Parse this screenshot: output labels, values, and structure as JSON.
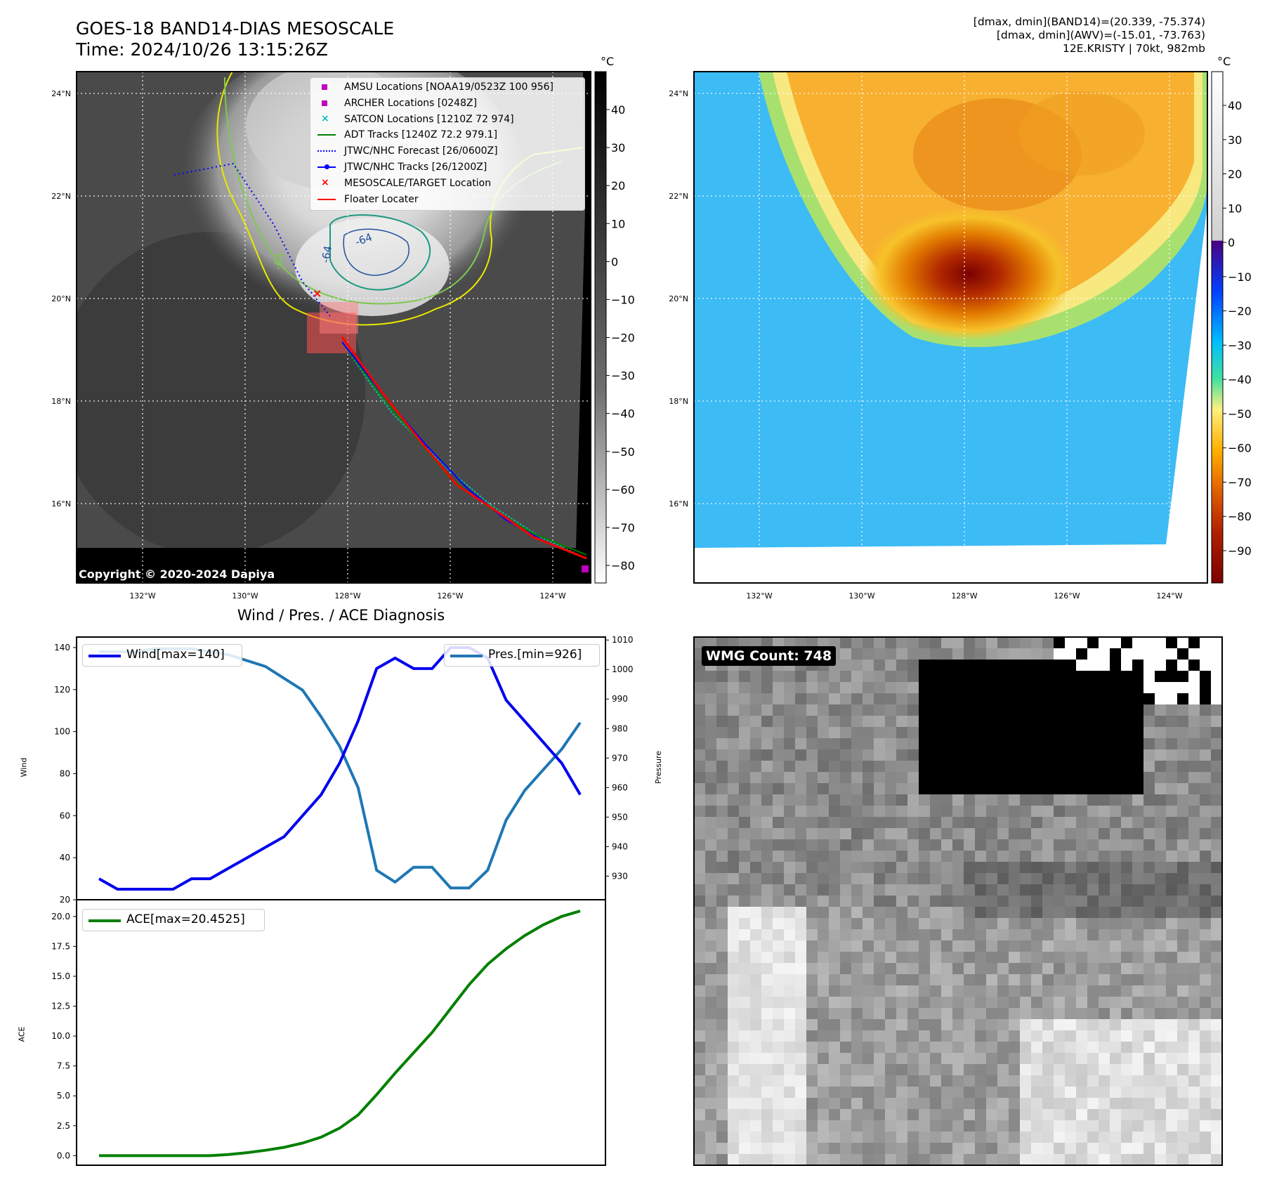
{
  "header": {
    "title_line1": "GOES-18 BAND14-DIAS MESOSCALE",
    "title_line2": "Time: 2024/10/26 13:15:26Z",
    "info_line1": "[dmax, dmin](BAND14)=(20.339, -75.374)",
    "info_line2": "[dmax, dmin](AWV)=(-15.01, -73.763)",
    "info_line3": "12E.KRISTY | 70kt, 982mb"
  },
  "map": {
    "lat_labels": [
      "24°N",
      "22°N",
      "20°N",
      "18°N",
      "16°N"
    ],
    "lon_labels": [
      "132°W",
      "130°W",
      "128°W",
      "126°W",
      "124°W"
    ],
    "contour_labels": [
      "-64",
      "-64",
      "-64"
    ],
    "copyright": "Copyright © 2020-2024 Dapiya",
    "legend": [
      {
        "label": "AMSU Locations [NOAA19/0523Z 100 956]",
        "marker": "square",
        "color": "#bf00bf"
      },
      {
        "label": "ARCHER Locations [0248Z]",
        "marker": "square",
        "color": "#bf00bf"
      },
      {
        "label": "SATCON Locations [1210Z 72 974]",
        "marker": "x",
        "color": "#00bfbf"
      },
      {
        "label": "ADT Tracks [1240Z 72.2 979.1]",
        "marker": "line",
        "color": "#008000"
      },
      {
        "label": "JTWC/NHC Forecast [26/0600Z]",
        "marker": "dotted",
        "color": "#0000ff"
      },
      {
        "label": "JTWC/NHC Tracks [26/1200Z]",
        "marker": "line-dot",
        "color": "#0000ff"
      },
      {
        "label": "MESOSCALE/TARGET Location",
        "marker": "x",
        "color": "#ff0000"
      },
      {
        "label": "Floater Locater",
        "marker": "line",
        "color": "#ff0000"
      }
    ]
  },
  "colorbars": {
    "unit": "°C",
    "gray_ticks": [
      "40",
      "30",
      "20",
      "10",
      "0",
      "−10",
      "−20",
      "−30",
      "−40",
      "−50",
      "−60",
      "−70",
      "−80"
    ],
    "color_ticks": [
      "40",
      "30",
      "20",
      "10",
      "0",
      "−10",
      "−20",
      "−30",
      "−40",
      "−50",
      "−60",
      "−70",
      "−80",
      "−90"
    ]
  },
  "diagnosis": {
    "title": "Wind / Pres. / ACE Diagnosis",
    "wind_ylabel": "Wind",
    "pres_ylabel": "Pressure",
    "ace_ylabel": "ACE",
    "wind_legend": "Wind[max=140]",
    "pres_legend": "Pres.[min=926]",
    "ace_legend": "ACE[max=20.4525]",
    "wind_ticks": [
      "140",
      "120",
      "100",
      "80",
      "60",
      "40",
      "20"
    ],
    "pres_ticks": [
      "1010",
      "1000",
      "990",
      "980",
      "970",
      "960",
      "950",
      "940",
      "930"
    ],
    "ace_ticks": [
      "20.0",
      "17.5",
      "15.0",
      "12.5",
      "10.0",
      "7.5",
      "5.0",
      "2.5",
      "0.0"
    ]
  },
  "wmg": {
    "label": "WMG Count: 748"
  },
  "chart_data": [
    {
      "type": "line",
      "title": "Wind / Pres. / ACE Diagnosis",
      "xlabel": "",
      "ylabel": "Wind",
      "ylim": [
        20,
        145
      ],
      "series": [
        {
          "name": "Wind[max=140]",
          "color": "#0000ee",
          "values": [
            30,
            25,
            25,
            25,
            25,
            30,
            30,
            35,
            40,
            45,
            50,
            60,
            70,
            85,
            105,
            130,
            135,
            130,
            130,
            140,
            140,
            135,
            115,
            105,
            95,
            85,
            70
          ]
        }
      ],
      "secondary_axis": {
        "ylabel": "Pressure",
        "ylim": [
          922,
          1011
        ],
        "series": [
          {
            "name": "Pres.[min=926]",
            "color": "#1f77b4",
            "values": [
              1006,
              1006,
              1006,
              1007,
              1007,
              1007,
              1006,
              1005,
              1003,
              1001,
              997,
              993,
              984,
              974,
              960,
              932,
              928,
              933,
              933,
              926,
              926,
              932,
              949,
              959,
              966,
              973,
              982
            ]
          }
        ]
      }
    },
    {
      "type": "line",
      "xlabel": "",
      "ylabel": "ACE",
      "ylim": [
        -0.8,
        21.4
      ],
      "series": [
        {
          "name": "ACE[max=20.4525]",
          "color": "#008000",
          "values": [
            0,
            0,
            0,
            0,
            0,
            0,
            0,
            0.1,
            0.25,
            0.45,
            0.7,
            1.05,
            1.55,
            2.3,
            3.4,
            5.1,
            6.9,
            8.6,
            10.3,
            12.3,
            14.3,
            16.0,
            17.3,
            18.4,
            19.3,
            20.0,
            20.4525
          ]
        }
      ]
    }
  ]
}
